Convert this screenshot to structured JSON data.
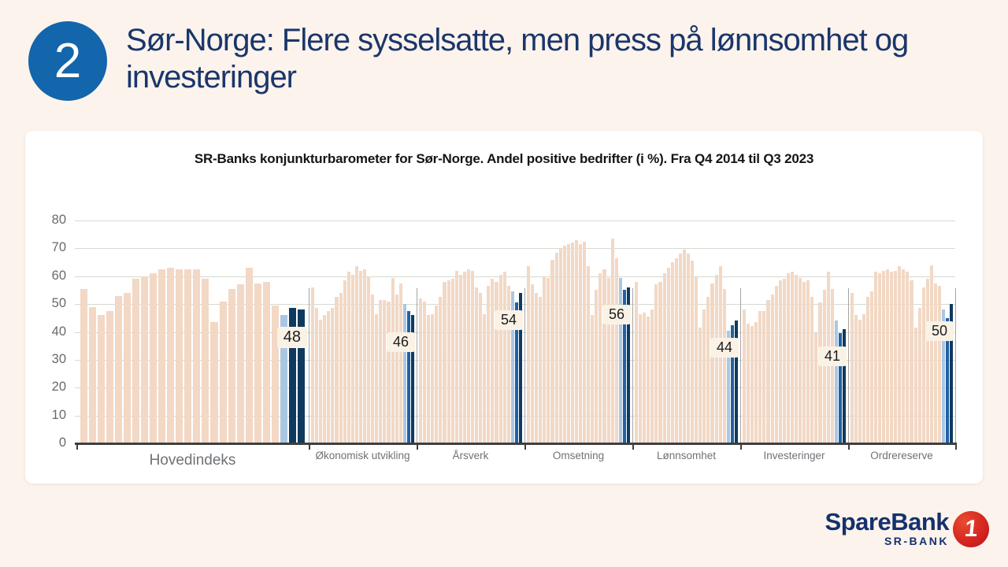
{
  "slide": {
    "badge_number": "2",
    "title": "Sør-Norge: Flere sysselsatte, men press på lønnsomhet og investeringer"
  },
  "colors": {
    "background": "#fcf3ec",
    "card": "#ffffff",
    "badge_blue": "#1365ac",
    "title_navy": "#1a366b",
    "bar_tan": "#f2d8c5",
    "bar_light_blue": "#aac7e2",
    "bar_mid_blue": "#2161a5",
    "bar_navy": "#0f3a5f",
    "gridline": "#d5dad0",
    "axis": "#3f3f3f",
    "label_gray": "#6e7276",
    "callout_bg": "#fbf2e6",
    "logo_red": "#d62620",
    "logo_navy": "#15316d"
  },
  "chart_data": {
    "type": "bar",
    "title": "SR-Banks konjunkturbarometer for Sør-Norge. Andel positive bedrifter (i %). Fra Q4 2014 til Q3 2023",
    "ylabel": "Andel positive bedrifter (i %)",
    "ylim": [
      0,
      80
    ],
    "yticks": [
      0,
      10,
      20,
      30,
      40,
      50,
      60,
      70,
      80
    ],
    "grid": "horizontal",
    "legend_position": "none",
    "note": "Each group shows quarterly values Q4 2014 - Q3 2023; last three quarters highlighted in blue, latest value labelled",
    "groups": [
      {
        "label": "Hovedindeks",
        "latest_label": "48",
        "values": [
          55.5,
          49,
          46,
          47.5,
          53,
          54,
          59,
          60,
          61,
          62.5,
          63,
          62.5,
          62.5,
          62.5,
          59,
          43.5,
          51,
          55.5,
          57,
          63,
          57.5,
          58,
          49.5,
          46,
          48.5,
          48
        ],
        "highlight_colors": [
          "light",
          "navy",
          "navy"
        ]
      },
      {
        "label": "Økonomisk utvikling",
        "latest_label": "46",
        "values": [
          56,
          48.5,
          44.5,
          46,
          47.5,
          48.5,
          52.5,
          54,
          58.5,
          61.5,
          60.5,
          63.5,
          62,
          62.5,
          60,
          53.5,
          46.5,
          51.5,
          51.5,
          51,
          59.5,
          53.5,
          57.5,
          50,
          47.5,
          46
        ],
        "highlight_colors": [
          "light",
          "mid",
          "navy"
        ]
      },
      {
        "label": "Årsverk",
        "latest_label": "54",
        "values": [
          52,
          51,
          46,
          46.5,
          49.5,
          52.5,
          58,
          58.5,
          59,
          62,
          60.5,
          61.5,
          62.5,
          62,
          56,
          54,
          46.5,
          56.5,
          59,
          58,
          60.5,
          61.5,
          56.5,
          54.5,
          50.5,
          54
        ],
        "highlight_colors": [
          "light",
          "mid",
          "navy"
        ]
      },
      {
        "label": "Omsetning",
        "latest_label": "56",
        "values": [
          63.5,
          57,
          54,
          52.5,
          60,
          59.5,
          66,
          68.5,
          70,
          71,
          71.5,
          72,
          73,
          71.5,
          72.5,
          63.5,
          46,
          55,
          61,
          62.5,
          59.5,
          73.5,
          66.5,
          59.5,
          55,
          56
        ],
        "highlight_colors": [
          "light",
          "mid",
          "navy"
        ]
      },
      {
        "label": "Lønnsomhet",
        "latest_label": "44",
        "values": [
          58,
          46.5,
          47,
          45.5,
          48,
          57,
          58,
          61,
          63,
          65,
          66.5,
          68,
          69.5,
          68,
          65.5,
          60,
          41.5,
          48,
          52.5,
          57.5,
          60.5,
          63.5,
          55.5,
          40.5,
          42.5,
          44
        ],
        "highlight_colors": [
          "light",
          "mid",
          "navy"
        ]
      },
      {
        "label": "Investeringer",
        "latest_label": "41",
        "values": [
          48,
          43,
          42,
          43.5,
          47.5,
          47.5,
          51.5,
          53.5,
          56.5,
          58.5,
          59,
          61,
          61.5,
          60.5,
          59.5,
          58,
          58.5,
          52.5,
          39.5,
          50.5,
          55,
          61.5,
          55.5,
          44,
          39.5,
          41
        ],
        "highlight_colors": [
          "light",
          "mid",
          "navy"
        ]
      },
      {
        "label": "Ordrereserve",
        "latest_label": "50",
        "values": [
          54,
          46,
          44.5,
          46.5,
          52.5,
          54.5,
          61.5,
          61,
          62,
          62.5,
          61.5,
          62,
          63.5,
          62.5,
          61.5,
          58.5,
          41.5,
          48.5,
          56,
          59,
          64,
          57.5,
          56.5,
          48,
          45,
          50
        ],
        "highlight_colors": [
          "light",
          "mid",
          "navy"
        ]
      }
    ]
  },
  "logo": {
    "name": "SpareBank",
    "sub": "SR-BANK",
    "circle_number": "1"
  }
}
